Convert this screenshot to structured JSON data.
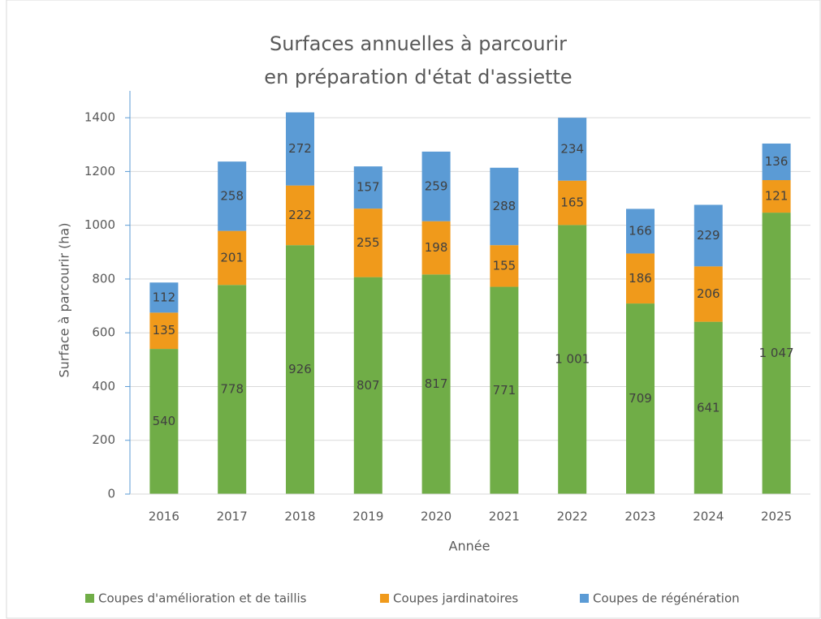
{
  "chart_data": {
    "type": "stacked_bar",
    "title": [
      "Surfaces annuelles à parcourir",
      "en préparation d'état d'assiette"
    ],
    "x_label": "Année",
    "y_label": "Surface à parcourir (ha)",
    "categories": [
      "2016",
      "2017",
      "2018",
      "2019",
      "2020",
      "2021",
      "2022",
      "2023",
      "2024",
      "2025"
    ],
    "series": [
      {
        "name": "Coupes d'amélioration et de taillis",
        "color": "#70ad47",
        "values": [
          540,
          778,
          926,
          807,
          817,
          771,
          1001,
          709,
          641,
          1047
        ],
        "value_labels": [
          "540",
          "778",
          "926",
          "807",
          "817",
          "771",
          "1 001",
          "709",
          "641",
          "1 047"
        ]
      },
      {
        "name": "Coupes jardinatoires",
        "color": "#f09a1b",
        "values": [
          135,
          201,
          222,
          255,
          198,
          155,
          165,
          186,
          206,
          121
        ]
      },
      {
        "name": "Coupes de régénération",
        "color": "#5b9bd5",
        "values": [
          112,
          258,
          272,
          157,
          259,
          288,
          234,
          166,
          229,
          136
        ]
      }
    ],
    "ylim": [
      0,
      1500
    ],
    "yticks": [
      0,
      200,
      400,
      600,
      800,
      1000,
      1200,
      1400
    ],
    "grid": true,
    "legend": "bottom"
  }
}
